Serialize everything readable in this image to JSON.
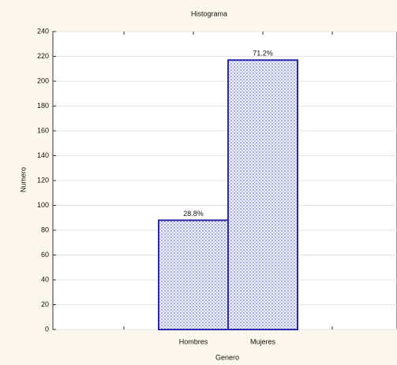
{
  "chart_data": {
    "type": "bar",
    "title": "Histograma",
    "x_label": "Genero",
    "y_label": "Numero",
    "categories": [
      null,
      "Hombres",
      "Mujeres",
      null
    ],
    "values": [
      null,
      88,
      217,
      null
    ],
    "annotations": [
      null,
      "28.8%",
      "71.2%",
      null
    ],
    "color": "#2a2aa8",
    "ylim": [
      0,
      240
    ],
    "yticks": [
      0,
      20,
      40,
      60,
      80,
      100,
      120,
      140,
      160,
      180,
      200,
      220,
      240
    ],
    "grid": true
  }
}
